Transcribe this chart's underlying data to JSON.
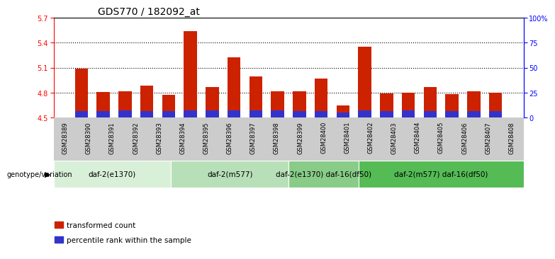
{
  "title": "GDS770 / 182092_at",
  "samples": [
    "GSM28389",
    "GSM28390",
    "GSM28391",
    "GSM28392",
    "GSM28393",
    "GSM28394",
    "GSM28395",
    "GSM28396",
    "GSM28397",
    "GSM28398",
    "GSM28399",
    "GSM28400",
    "GSM28401",
    "GSM28402",
    "GSM28403",
    "GSM28404",
    "GSM28405",
    "GSM28406",
    "GSM28407",
    "GSM28408"
  ],
  "transformed_count": [
    5.09,
    4.81,
    4.82,
    4.88,
    4.77,
    5.54,
    4.87,
    5.22,
    4.99,
    4.82,
    4.82,
    4.97,
    4.65,
    5.35,
    4.79,
    4.8,
    4.87,
    4.78,
    4.82,
    4.8
  ],
  "percentile_heights": [
    0.08,
    0.08,
    0.09,
    0.08,
    0.08,
    0.09,
    0.09,
    0.09,
    0.09,
    0.09,
    0.08,
    0.08,
    0.06,
    0.09,
    0.08,
    0.09,
    0.08,
    0.08,
    0.08,
    0.08
  ],
  "ylim": [
    4.5,
    5.7
  ],
  "yticks": [
    4.5,
    4.8,
    5.1,
    5.4,
    5.7
  ],
  "right_yticks": [
    0,
    25,
    50,
    75,
    100
  ],
  "right_yticklabels": [
    "0",
    "25",
    "50",
    "75",
    "100%"
  ],
  "dotted_lines": [
    4.8,
    5.1,
    5.4
  ],
  "bar_color": "#cc2200",
  "blue_color": "#3333cc",
  "bar_width": 0.6,
  "groups": [
    {
      "label": "daf-2(e1370)",
      "start": 0,
      "end": 5,
      "color": "#d8f0d8"
    },
    {
      "label": "daf-2(m577)",
      "start": 5,
      "end": 10,
      "color": "#b8e0b8"
    },
    {
      "label": "daf-2(e1370) daf-16(df50)",
      "start": 10,
      "end": 13,
      "color": "#88cc88"
    },
    {
      "label": "daf-2(m577) daf-16(df50)",
      "start": 13,
      "end": 20,
      "color": "#55bb55"
    }
  ],
  "legend_items": [
    {
      "label": "transformed count",
      "color": "#cc2200"
    },
    {
      "label": "percentile rank within the sample",
      "color": "#3333cc"
    }
  ],
  "genotype_label": "genotype/variation",
  "title_fontsize": 10,
  "tick_fontsize": 7,
  "group_fontsize": 7.5,
  "sample_fontsize": 6.0
}
